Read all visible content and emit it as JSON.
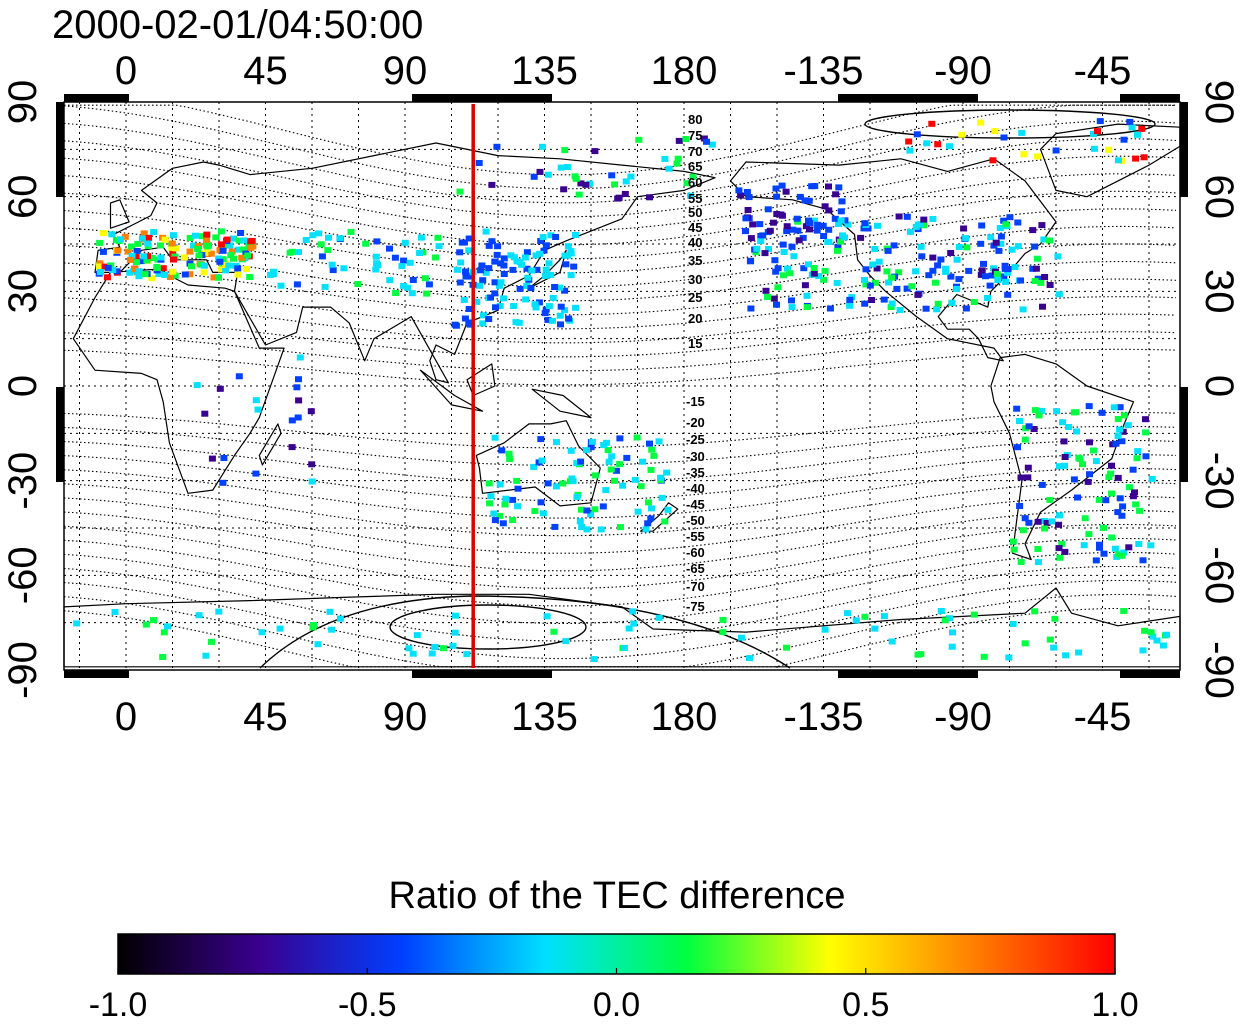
{
  "timestamp": "2000-02-01/04:50:00",
  "colorbar": {
    "title": "Ratio of the TEC difference",
    "ticks": [
      "-1.0",
      "-0.5",
      "0.0",
      "0.5",
      "1.0"
    ],
    "colors": [
      "#000000",
      "#3a0090",
      "#0040ff",
      "#00e0ff",
      "#00ff40",
      "#ffff00",
      "#ff8000",
      "#ff0000"
    ]
  },
  "map": {
    "lon_ticks": [
      "0",
      "45",
      "90",
      "135",
      "180",
      "-135",
      "-90",
      "-45"
    ],
    "lat_ticks": [
      "90",
      "60",
      "30",
      "0",
      "-30",
      "-60",
      "-90"
    ],
    "dip_labels_north": [
      "80",
      "75",
      "70",
      "65",
      "60",
      "55",
      "50",
      "45",
      "40",
      "35",
      "30",
      "25",
      "20",
      "15"
    ],
    "dip_labels_south": [
      "-15",
      "-20",
      "-25",
      "-30",
      "-35",
      "-40",
      "-45",
      "-50",
      "-55",
      "-60",
      "-65",
      "-70",
      "-75"
    ],
    "terminator_lon": 112,
    "terminator_color": "#dd0000",
    "lon_start": -20,
    "lon_end": 340
  }
}
